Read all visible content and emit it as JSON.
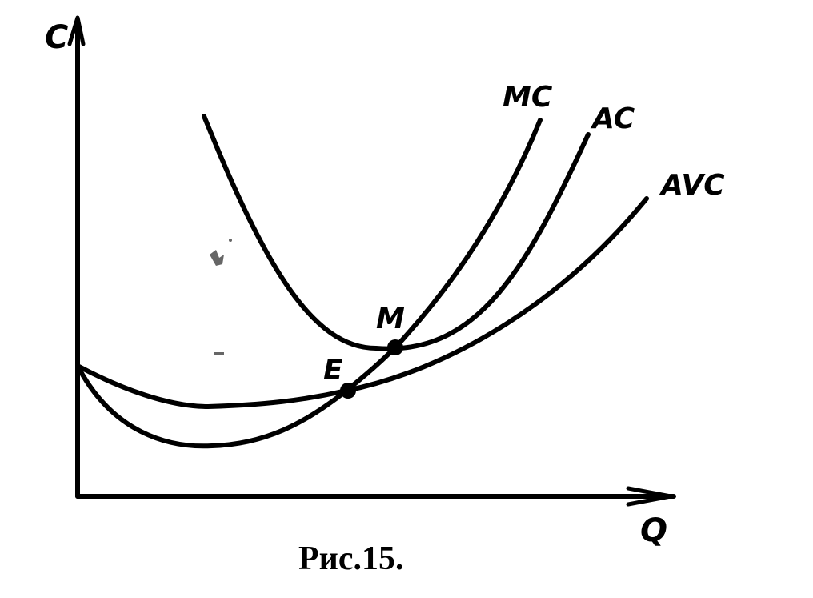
{
  "figure": {
    "axes": {
      "y_label": "C",
      "x_label": "Q"
    },
    "curves": [
      {
        "id": "mc",
        "label": "MC"
      },
      {
        "id": "ac",
        "label": "AC"
      },
      {
        "id": "avc",
        "label": "AVC"
      }
    ],
    "points": [
      {
        "id": "m",
        "label": "M"
      },
      {
        "id": "e",
        "label": "E"
      }
    ],
    "caption": "Рис.15.",
    "colors": {
      "ink": "#000000",
      "background": "#ffffff"
    }
  }
}
